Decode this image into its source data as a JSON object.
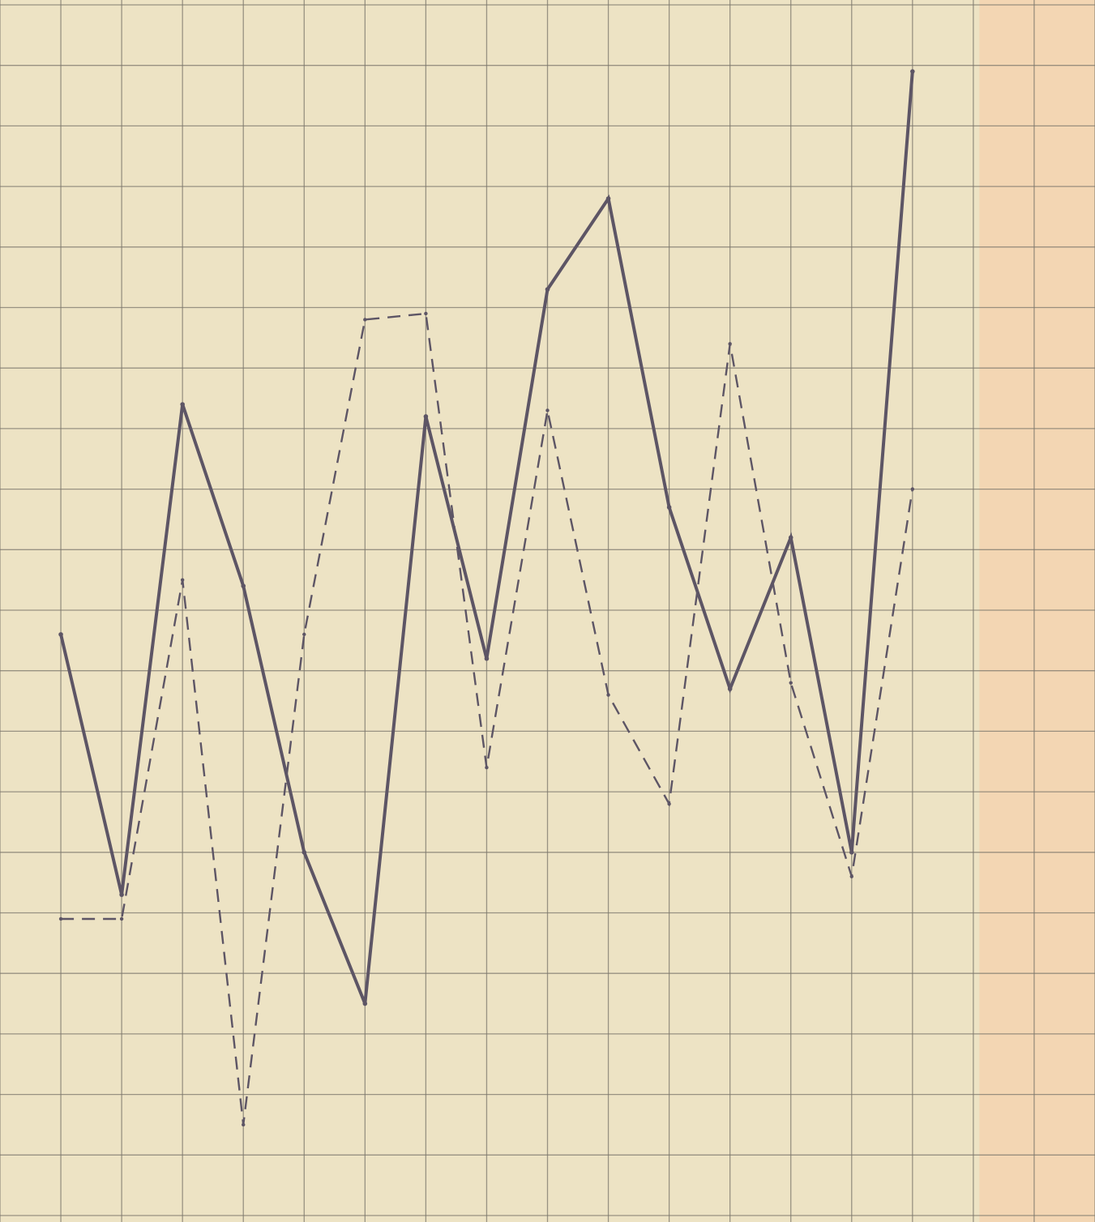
{
  "paper": {
    "background": "#ede3c4",
    "tint": "#f3d3b0",
    "grid_color": "#7c776c",
    "line_color": "#5d5565"
  },
  "chart_data": {
    "type": "line",
    "title": "",
    "xlabel": "",
    "ylabel": "",
    "grid": true,
    "legend": "none",
    "x": [
      1,
      2,
      3,
      4,
      5,
      6,
      7,
      8,
      9,
      10,
      11,
      12,
      13,
      14,
      15
    ],
    "xlim": [
      0,
      18
    ],
    "ylim": [
      0,
      20
    ],
    "series": [
      {
        "style": "solid",
        "values": [
          9.6,
          5.3,
          13.4,
          10.4,
          6.0,
          3.5,
          13.2,
          9.2,
          15.3,
          16.8,
          11.7,
          8.7,
          11.2,
          6.0,
          18.9
        ]
      },
      {
        "style": "dashed",
        "values": [
          4.9,
          4.9,
          10.5,
          1.5,
          9.6,
          14.8,
          14.9,
          7.4,
          13.3,
          8.6,
          6.8,
          14.4,
          8.8,
          5.6,
          12.0
        ]
      }
    ]
  }
}
